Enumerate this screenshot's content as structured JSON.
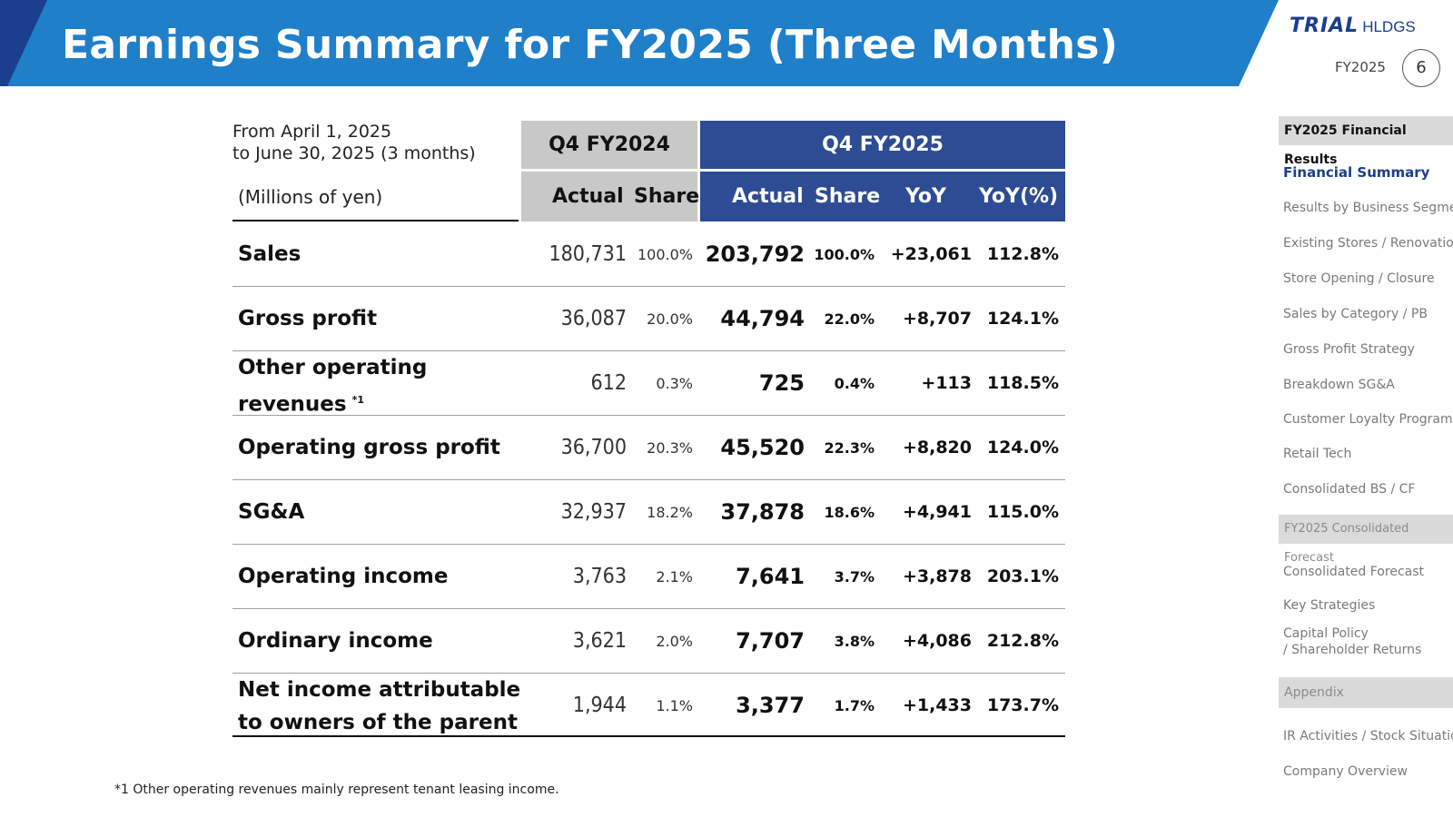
{
  "header": {
    "title": "Earnings Summary for FY2025 (Three Months)",
    "logo_brand": "TRIAL",
    "logo_suffix": "HLDGS",
    "fiscal_year": "FY2025",
    "page_number": "6"
  },
  "colors": {
    "banner_blue": "#1f7fc9",
    "banner_dark": "#1b3f8c",
    "header_gray": "#c8c8c8",
    "header_blue": "#2e4c94",
    "nav_active": "#1b3f8c"
  },
  "table": {
    "period_line1": "From April 1, 2025",
    "period_line2": "to June 30, 2025 (3 months)",
    "unit": "(Millions of yen)",
    "group_prev": "Q4 FY2024",
    "group_curr": "Q4 FY2025",
    "col_actual": "Actual",
    "col_share": "Share",
    "col_yoy": "YoY",
    "col_yoyp": "YoY(%)",
    "rows": [
      {
        "line1": "Sales",
        "line2": "",
        "note": "",
        "prev_actual": "180,731",
        "prev_share": "100.0%",
        "cur_actual": "203,792",
        "cur_share": "100.0%",
        "yoy": "+23,061",
        "yoy_pct": "112.8%"
      },
      {
        "line1": "Gross profit",
        "line2": "",
        "note": "",
        "prev_actual": "36,087",
        "prev_share": "20.0%",
        "cur_actual": "44,794",
        "cur_share": "22.0%",
        "yoy": "+8,707",
        "yoy_pct": "124.1%"
      },
      {
        "line1": "Other operating",
        "line2": "revenues",
        "note": "*1",
        "prev_actual": "612",
        "prev_share": "0.3%",
        "cur_actual": "725",
        "cur_share": "0.4%",
        "yoy": "+113",
        "yoy_pct": "118.5%"
      },
      {
        "line1": "Operating gross profit",
        "line2": "",
        "note": "",
        "prev_actual": "36,700",
        "prev_share": "20.3%",
        "cur_actual": "45,520",
        "cur_share": "22.3%",
        "yoy": "+8,820",
        "yoy_pct": "124.0%"
      },
      {
        "line1": "SG&A",
        "line2": "",
        "note": "",
        "prev_actual": "32,937",
        "prev_share": "18.2%",
        "cur_actual": "37,878",
        "cur_share": "18.6%",
        "yoy": "+4,941",
        "yoy_pct": "115.0%"
      },
      {
        "line1": "Operating income",
        "line2": "",
        "note": "",
        "prev_actual": "3,763",
        "prev_share": "2.1%",
        "cur_actual": "7,641",
        "cur_share": "3.7%",
        "yoy": "+3,878",
        "yoy_pct": "203.1%"
      },
      {
        "line1": "Ordinary income",
        "line2": "",
        "note": "",
        "prev_actual": "3,621",
        "prev_share": "2.0%",
        "cur_actual": "7,707",
        "cur_share": "3.8%",
        "yoy": "+4,086",
        "yoy_pct": "212.8%"
      },
      {
        "line1": "Net income attributable",
        "line2": "to owners of the parent",
        "note": "",
        "prev_actual": "1,944",
        "prev_share": "1.1%",
        "cur_actual": "3,377",
        "cur_share": "1.7%",
        "yoy": "+1,433",
        "yoy_pct": "173.7%"
      }
    ]
  },
  "footnote": "*1 Other operating revenues mainly represent tenant leasing income.",
  "nav": {
    "section1": "FY2025 Financial Results",
    "items1": [
      {
        "label": "Financial Summary",
        "active": true
      },
      {
        "label": "Results by Business Segment",
        "active": false
      },
      {
        "label": "Existing Stores / Renovation",
        "active": false
      },
      {
        "label": "Store Opening / Closure",
        "active": false
      },
      {
        "label": "Sales by Category / PB",
        "active": false
      },
      {
        "label": "Gross Profit Strategy",
        "active": false
      },
      {
        "label": "Breakdown SG&A",
        "active": false
      },
      {
        "label": "Customer Loyalty Program",
        "active": false
      },
      {
        "label": "Retail Tech",
        "active": false
      },
      {
        "label": "Consolidated BS / CF",
        "active": false
      }
    ],
    "section2": "FY2025 Consolidated Forecast",
    "items2": [
      {
        "label": "Consolidated Forecast",
        "active": false
      },
      {
        "label": "Key Strategies",
        "active": false
      },
      {
        "label": "Capital Policy",
        "active": false
      },
      {
        "label": "/ Shareholder Returns",
        "active": false
      }
    ],
    "section3": "Appendix",
    "items3": [
      {
        "label": "IR Activities / Stock Situation",
        "active": false
      },
      {
        "label": "Company Overview",
        "active": false
      }
    ]
  }
}
